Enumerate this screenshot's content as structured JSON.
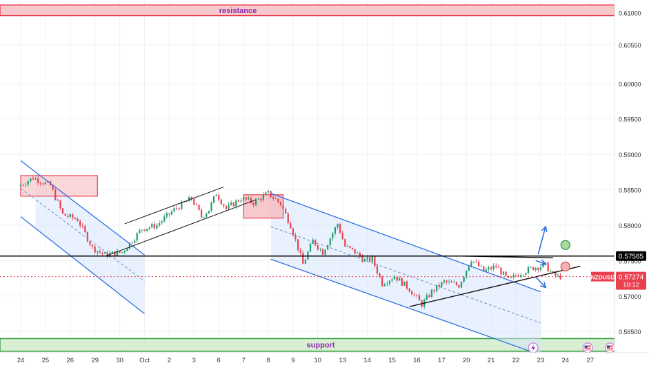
{
  "chart_data": {
    "type": "candlestick",
    "symbol": "NZDUSD",
    "ylim": [
      0.5622,
      0.6118
    ],
    "x_tick_labels": [
      "24",
      "25",
      "26",
      "29",
      "30",
      "Oct",
      "2",
      "3",
      "6",
      "7",
      "8",
      "9",
      "10",
      "13",
      "14",
      "15",
      "16",
      "17",
      "20",
      "21",
      "22",
      "23",
      "24",
      "27"
    ],
    "y_ticks": [
      {
        "value": 0.61,
        "label": "0.61000"
      },
      {
        "value": 0.6055,
        "label": "0.60550"
      },
      {
        "value": 0.6,
        "label": "0.60000"
      },
      {
        "value": 0.595,
        "label": "0.59500"
      },
      {
        "value": 0.59,
        "label": "0.59000"
      },
      {
        "value": 0.585,
        "label": "0.58500"
      },
      {
        "value": 0.58,
        "label": "0.58000"
      },
      {
        "value": 0.575,
        "label": "0.57500"
      },
      {
        "value": 0.57,
        "label": "0.57000"
      },
      {
        "value": 0.565,
        "label": "0.56500"
      }
    ],
    "price_anchors": [
      {
        "day": 0,
        "price": 0.5855
      },
      {
        "day": 0.6,
        "price": 0.5867
      },
      {
        "day": 1.3,
        "price": 0.5856
      },
      {
        "day": 1.8,
        "price": 0.5815
      },
      {
        "day": 2.4,
        "price": 0.5808
      },
      {
        "day": 3.0,
        "price": 0.5768
      },
      {
        "day": 3.5,
        "price": 0.5758
      },
      {
        "day": 4.2,
        "price": 0.5762
      },
      {
        "day": 5.0,
        "price": 0.5795
      },
      {
        "day": 5.6,
        "price": 0.58
      },
      {
        "day": 6.3,
        "price": 0.5822
      },
      {
        "day": 7.0,
        "price": 0.5838
      },
      {
        "day": 7.4,
        "price": 0.5812
      },
      {
        "day": 7.7,
        "price": 0.5822
      },
      {
        "day": 8.0,
        "price": 0.5845
      },
      {
        "day": 8.4,
        "price": 0.5823
      },
      {
        "day": 9.0,
        "price": 0.5838
      },
      {
        "day": 9.5,
        "price": 0.5832
      },
      {
        "day": 10.1,
        "price": 0.5845
      },
      {
        "day": 10.6,
        "price": 0.583
      },
      {
        "day": 11.0,
        "price": 0.58
      },
      {
        "day": 11.3,
        "price": 0.5768
      },
      {
        "day": 11.5,
        "price": 0.5745
      },
      {
        "day": 11.9,
        "price": 0.5778
      },
      {
        "day": 12.3,
        "price": 0.5762
      },
      {
        "day": 12.9,
        "price": 0.5802
      },
      {
        "day": 13.2,
        "price": 0.577
      },
      {
        "day": 13.6,
        "price": 0.5762
      },
      {
        "day": 14.0,
        "price": 0.575
      },
      {
        "day": 14.3,
        "price": 0.5752
      },
      {
        "day": 14.7,
        "price": 0.5718
      },
      {
        "day": 15.2,
        "price": 0.5728
      },
      {
        "day": 15.8,
        "price": 0.571
      },
      {
        "day": 16.3,
        "price": 0.5688
      },
      {
        "day": 16.7,
        "price": 0.5706
      },
      {
        "day": 17.2,
        "price": 0.572
      },
      {
        "day": 17.8,
        "price": 0.5715
      },
      {
        "day": 18.3,
        "price": 0.5752
      },
      {
        "day": 18.8,
        "price": 0.5735
      },
      {
        "day": 19.3,
        "price": 0.5742
      },
      {
        "day": 19.8,
        "price": 0.5722
      },
      {
        "day": 20.3,
        "price": 0.5733
      },
      {
        "day": 20.8,
        "price": 0.574
      },
      {
        "day": 21.3,
        "price": 0.5743
      },
      {
        "day": 21.6,
        "price": 0.573
      },
      {
        "day": 21.8,
        "price": 0.57274
      }
    ],
    "zones": [
      {
        "name": "resistance",
        "label": "resistance",
        "from": 0.6096,
        "to": 0.6111,
        "color": "#f7b6bc",
        "border": "#e8404f"
      },
      {
        "name": "support",
        "label": "support",
        "from": 0.5622,
        "to": 0.564,
        "color": "#cce9c6",
        "border": "#3fa34d"
      }
    ],
    "boxes": [
      {
        "x0": 0,
        "x1": 3.1,
        "y0": 0.5841,
        "y1": 0.587,
        "color": "#f8c9cc",
        "border": "#e8404f"
      },
      {
        "x0": 9.0,
        "x1": 10.6,
        "y0": 0.581,
        "y1": 0.5843,
        "color": "#f4b6bb",
        "border": "#e8404f"
      }
    ],
    "channels": [
      {
        "upper": [
          [
            0,
            0.5891
          ],
          [
            5.0,
            0.5758
          ]
        ],
        "lower": [
          [
            0,
            0.5812
          ],
          [
            5.0,
            0.5675
          ]
        ],
        "mid": [
          [
            0,
            0.5852
          ],
          [
            5.0,
            0.5721
          ]
        ],
        "fill_x0": 0.6,
        "fill_x1": 5.0
      },
      {
        "upper": [
          [
            10.1,
            0.5845
          ],
          [
            21.0,
            0.5706
          ]
        ],
        "lower": [
          [
            10.1,
            0.5752
          ],
          [
            20.9,
            0.5618
          ]
        ],
        "mid": [
          [
            10.1,
            0.5798
          ],
          [
            21.0,
            0.5662
          ]
        ],
        "fill_x0": 10.1,
        "fill_x1": 21.0
      }
    ],
    "rising_channel": {
      "upper": [
        [
          4.2,
          0.5802
        ],
        [
          8.2,
          0.5854
        ]
      ],
      "lower": [
        [
          3.4,
          0.5756
        ],
        [
          9.5,
          0.5836
        ]
      ]
    },
    "triangle": {
      "top": [
        [
          17.6,
          0.57565
        ],
        [
          21.5,
          0.5754
        ]
      ],
      "bottom": [
        [
          15.7,
          0.5685
        ],
        [
          22.6,
          0.5742
        ]
      ]
    },
    "levels": [
      {
        "name": "key-level",
        "price": 0.57565,
        "label": "0.57565",
        "color": "#000000"
      },
      {
        "name": "last-price",
        "price": 0.57274,
        "label": "0.57274",
        "extra": "10:12",
        "color": "#e8404f"
      }
    ],
    "projection_arrows": [
      {
        "from": [
          20.9,
          0.5759
        ],
        "to": [
          21.2,
          0.5798
        ]
      },
      {
        "from": [
          20.8,
          0.575
        ],
        "to": [
          21.2,
          0.5745
        ]
      },
      {
        "from": [
          20.8,
          0.5727
        ],
        "to": [
          21.2,
          0.5712
        ]
      }
    ],
    "markers": [
      {
        "name": "buy-target-circle",
        "day": 22.0,
        "price": 0.5772,
        "fill": "#a7d99a",
        "stroke": "#2e8b3e"
      },
      {
        "name": "sell-target-circle",
        "day": 22.0,
        "price": 0.57416,
        "fill": "#f4b4b4",
        "stroke": "#d9434f"
      }
    ],
    "event_icons": [
      {
        "name": "lightning-event-icon",
        "day": 20.7
      },
      {
        "name": "flag-event-icon",
        "day": 22.9
      },
      {
        "name": "flag-event-icon",
        "day": 23.8
      }
    ]
  }
}
